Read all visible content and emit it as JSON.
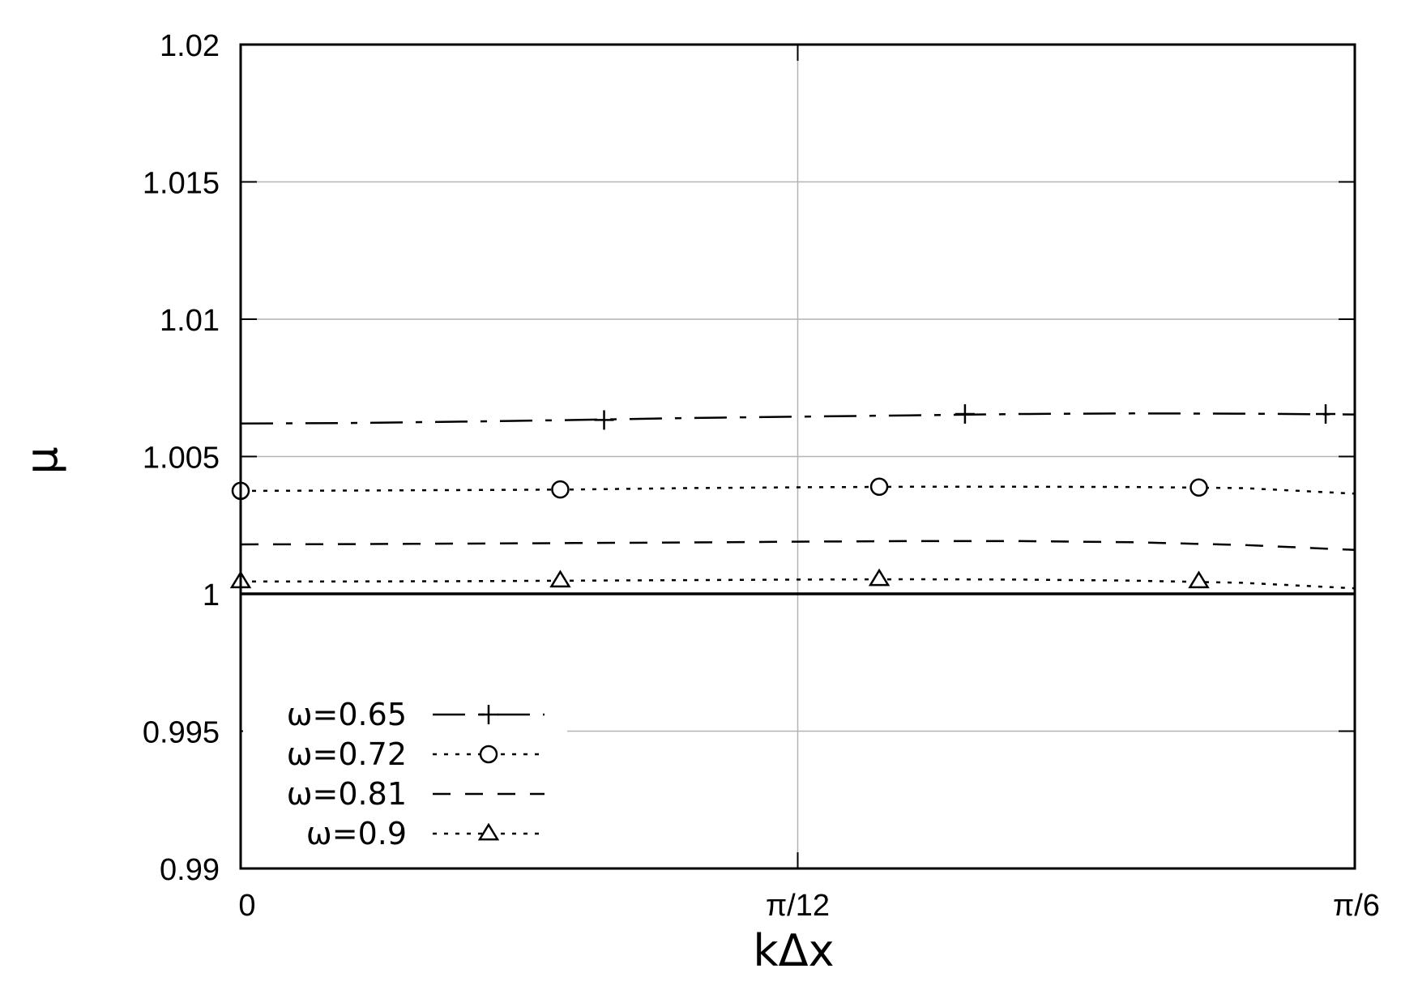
{
  "chart_data": {
    "type": "line",
    "xlabel": "kΔx",
    "ylabel": "μ",
    "xlim": [
      0,
      0.5236
    ],
    "ylim": [
      0.99,
      1.02
    ],
    "x_ticks": [
      {
        "value": 0,
        "label": "0"
      },
      {
        "value": 0.2618,
        "label": "π/12"
      },
      {
        "value": 0.5236,
        "label": "π/6"
      }
    ],
    "y_ticks": [
      {
        "value": 0.99,
        "label": "0.99"
      },
      {
        "value": 0.995,
        "label": "0.995"
      },
      {
        "value": 1.0,
        "label": "1"
      },
      {
        "value": 1.005,
        "label": "1.005"
      },
      {
        "value": 1.01,
        "label": "1.01"
      },
      {
        "value": 1.015,
        "label": "1.015"
      },
      {
        "value": 1.02,
        "label": "1.02"
      }
    ],
    "grid": true,
    "legend_position": "bottom-left",
    "reference_line": {
      "y": 1.0
    },
    "series": [
      {
        "name": "ω=0.65",
        "dash": "dash-dot",
        "marker": "plus",
        "x": [
          0,
          0.0524,
          0.1047,
          0.1571,
          0.2094,
          0.2618,
          0.3142,
          0.3665,
          0.4189,
          0.4712,
          0.5236
        ],
        "y": [
          1.0062,
          1.00622,
          1.00627,
          1.00633,
          1.0064,
          1.00645,
          1.0065,
          1.00655,
          1.00657,
          1.00656,
          1.00653
        ],
        "marker_x": [
          0.1708,
          0.3404,
          0.5099
        ],
        "marker_y": [
          1.00633,
          1.00655,
          1.00655
        ]
      },
      {
        "name": "ω=0.72",
        "dash": "dotted",
        "marker": "circle",
        "x": [
          0,
          0.0524,
          0.1047,
          0.1571,
          0.2094,
          0.2618,
          0.3142,
          0.3665,
          0.4189,
          0.4712,
          0.5236
        ],
        "y": [
          1.00375,
          1.00376,
          1.00378,
          1.0038,
          1.00385,
          1.00388,
          1.0039,
          1.0039,
          1.00389,
          1.00385,
          1.00365
        ],
        "marker_x": [
          0,
          0.1502,
          0.3001,
          0.4503
        ],
        "marker_y": [
          1.00375,
          1.0038,
          1.0039,
          1.00387
        ]
      },
      {
        "name": "ω=0.81",
        "dash": "dashed",
        "marker": "none",
        "x": [
          0,
          0.0524,
          0.1047,
          0.1571,
          0.2094,
          0.2618,
          0.3142,
          0.3665,
          0.4189,
          0.4712,
          0.5236
        ],
        "y": [
          1.0018,
          1.00181,
          1.00183,
          1.00185,
          1.00187,
          1.0019,
          1.00192,
          1.00192,
          1.00188,
          1.00178,
          1.0016
        ],
        "marker_x": [],
        "marker_y": []
      },
      {
        "name": "ω=0.9",
        "dash": "dotted",
        "marker": "triangle",
        "x": [
          0,
          0.0524,
          0.1047,
          0.1571,
          0.2094,
          0.2618,
          0.3142,
          0.3665,
          0.4189,
          0.4712,
          0.5236
        ],
        "y": [
          1.00045,
          1.00045,
          1.00046,
          1.00048,
          1.0005,
          1.00052,
          1.00053,
          1.00052,
          1.00048,
          1.0004,
          1.0002
        ],
        "marker_x": [
          0,
          0.1502,
          0.3001,
          0.4503
        ],
        "marker_y": [
          1.00045,
          1.00048,
          1.00053,
          1.00045
        ]
      }
    ]
  }
}
